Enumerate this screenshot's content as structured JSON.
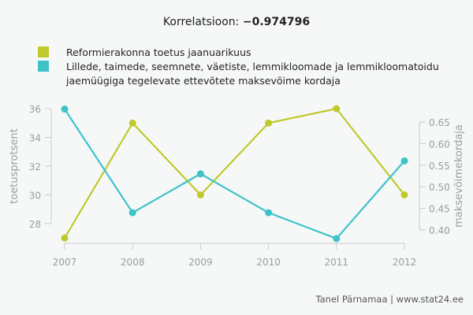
{
  "title": {
    "prefix": "Korrelatsioon: ",
    "value": "−0.974796"
  },
  "legend": [
    {
      "label": "Reformierakonna toetus jaanuarikuus",
      "color": "#c0c92c"
    },
    {
      "label_line1": "Lillede, taimede, seemnete, väetiste, lemmikloomade ja lemmikloomatoidu",
      "label_line2": "jaemüügiga tegelevate ettevõtete maksevõime kordaja",
      "color": "#3ec3c8"
    }
  ],
  "credit": "Tanel Pärnamaa | www.stat24.ee",
  "chart_data": {
    "type": "line",
    "title": "Korrelatsioon: −0.974796",
    "x": [
      "2007",
      "2008",
      "2009",
      "2010",
      "2011",
      "2012"
    ],
    "series": [
      {
        "name": "Reformierakonna toetus jaanuarikuus",
        "axis": "left",
        "color": "#c0c92c",
        "values": [
          27,
          35,
          30,
          35,
          36,
          30
        ]
      },
      {
        "name": "Lillede, taimede, seemnete, väetiste, lemmikloomade ja lemmikloomatoidu jaemüügiga tegelevate ettevõtete maksevõime kordaja",
        "axis": "right",
        "color": "#3ec3c8",
        "values": [
          0.68,
          0.44,
          0.53,
          0.44,
          0.38,
          0.56
        ]
      }
    ],
    "ylabel_left": "toetusprotsent",
    "ylabel_right": "maksevõimekordaja",
    "yticks_left": [
      "28",
      "30",
      "32",
      "34",
      "36"
    ],
    "yticks_right": [
      "0.40",
      "0.45",
      "0.50",
      "0.55",
      "0.60",
      "0.65"
    ],
    "ylim_left": [
      27,
      36
    ],
    "ylim_right": [
      0.38,
      0.68
    ],
    "grid": false,
    "legend_position": "top"
  }
}
